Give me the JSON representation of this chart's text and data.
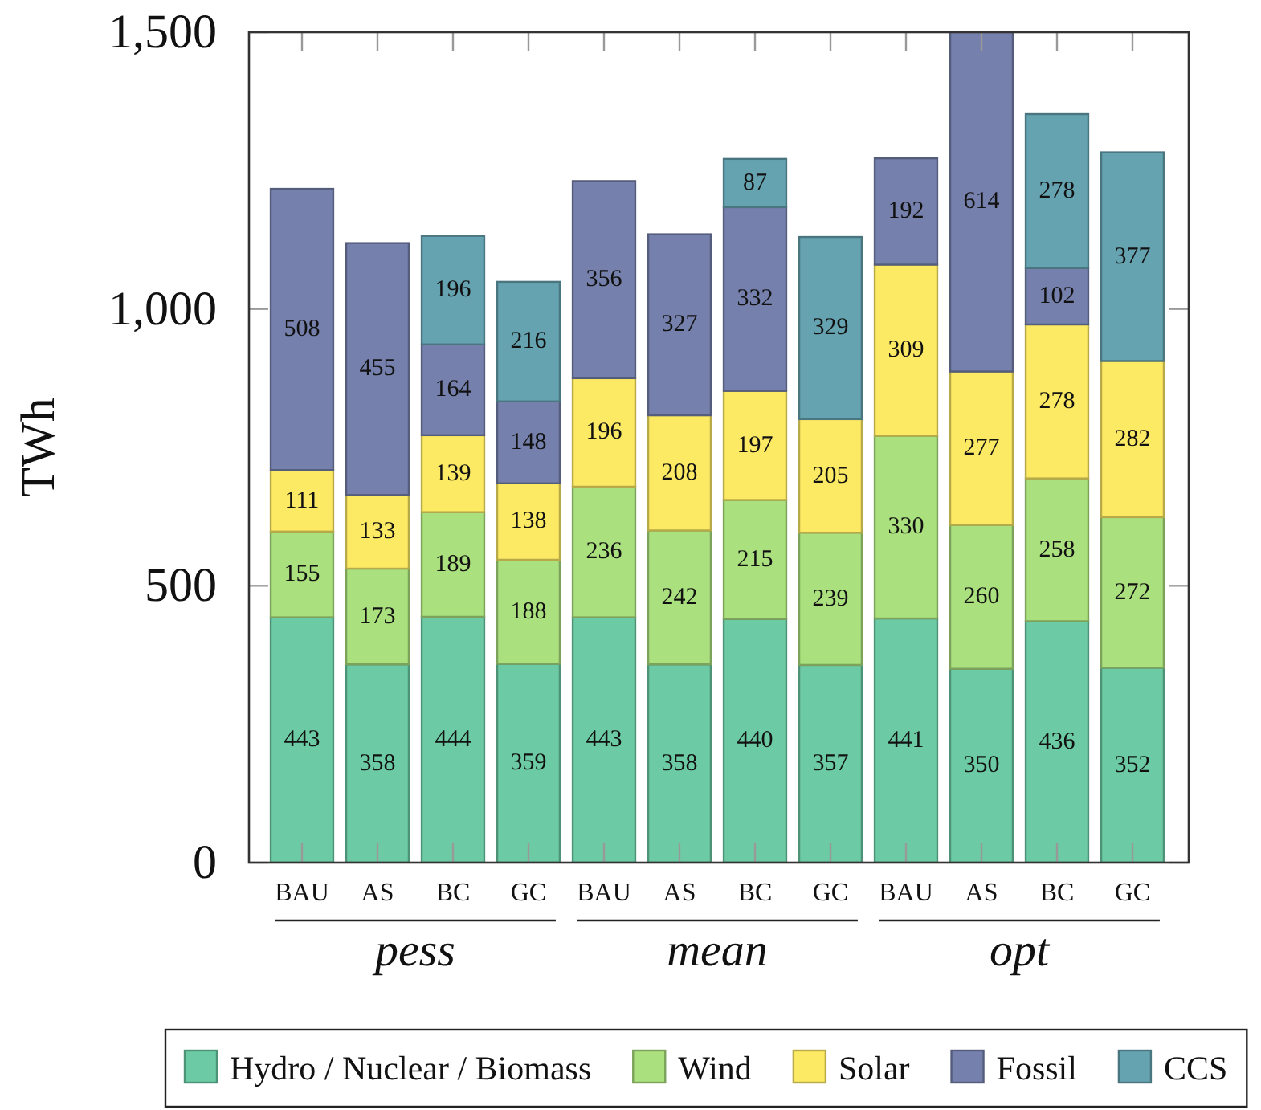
{
  "chart_data": {
    "type": "bar",
    "stacked": true,
    "ylabel": "TWh",
    "categories": [
      "BAU",
      "AS",
      "BC",
      "GC",
      "BAU",
      "AS",
      "BC",
      "GC",
      "BAU",
      "AS",
      "BC",
      "GC"
    ],
    "series": [
      {
        "name": "Hydro / Nuclear / Biomass",
        "color": "#6ccba4",
        "values": [
          443,
          358,
          444,
          359,
          443,
          358,
          440,
          357,
          441,
          350,
          436,
          352
        ]
      },
      {
        "name": "Wind",
        "color": "#abe07e",
        "values": [
          155,
          173,
          189,
          188,
          236,
          242,
          215,
          239,
          330,
          260,
          258,
          272
        ]
      },
      {
        "name": "Solar",
        "color": "#fdea64",
        "values": [
          111,
          133,
          139,
          138,
          196,
          208,
          197,
          205,
          309,
          277,
          278,
          282
        ]
      },
      {
        "name": "Fossil",
        "color": "#7580ac",
        "values": [
          508,
          455,
          164,
          148,
          356,
          327,
          332,
          null,
          192,
          614,
          102,
          null
        ]
      },
      {
        "name": "CCS",
        "color": "#66a3b0",
        "values": [
          null,
          null,
          196,
          216,
          null,
          null,
          87,
          329,
          null,
          null,
          278,
          377
        ]
      }
    ],
    "ylim": [
      0,
      1500
    ],
    "yticks": [
      0,
      500,
      {
        "value": 1000,
        "label": "1,000"
      },
      {
        "value": 1500,
        "label": "1,500"
      }
    ],
    "annotations": [
      "pess",
      "mean",
      "opt"
    ],
    "data_labels": true,
    "legend": "bottom"
  }
}
